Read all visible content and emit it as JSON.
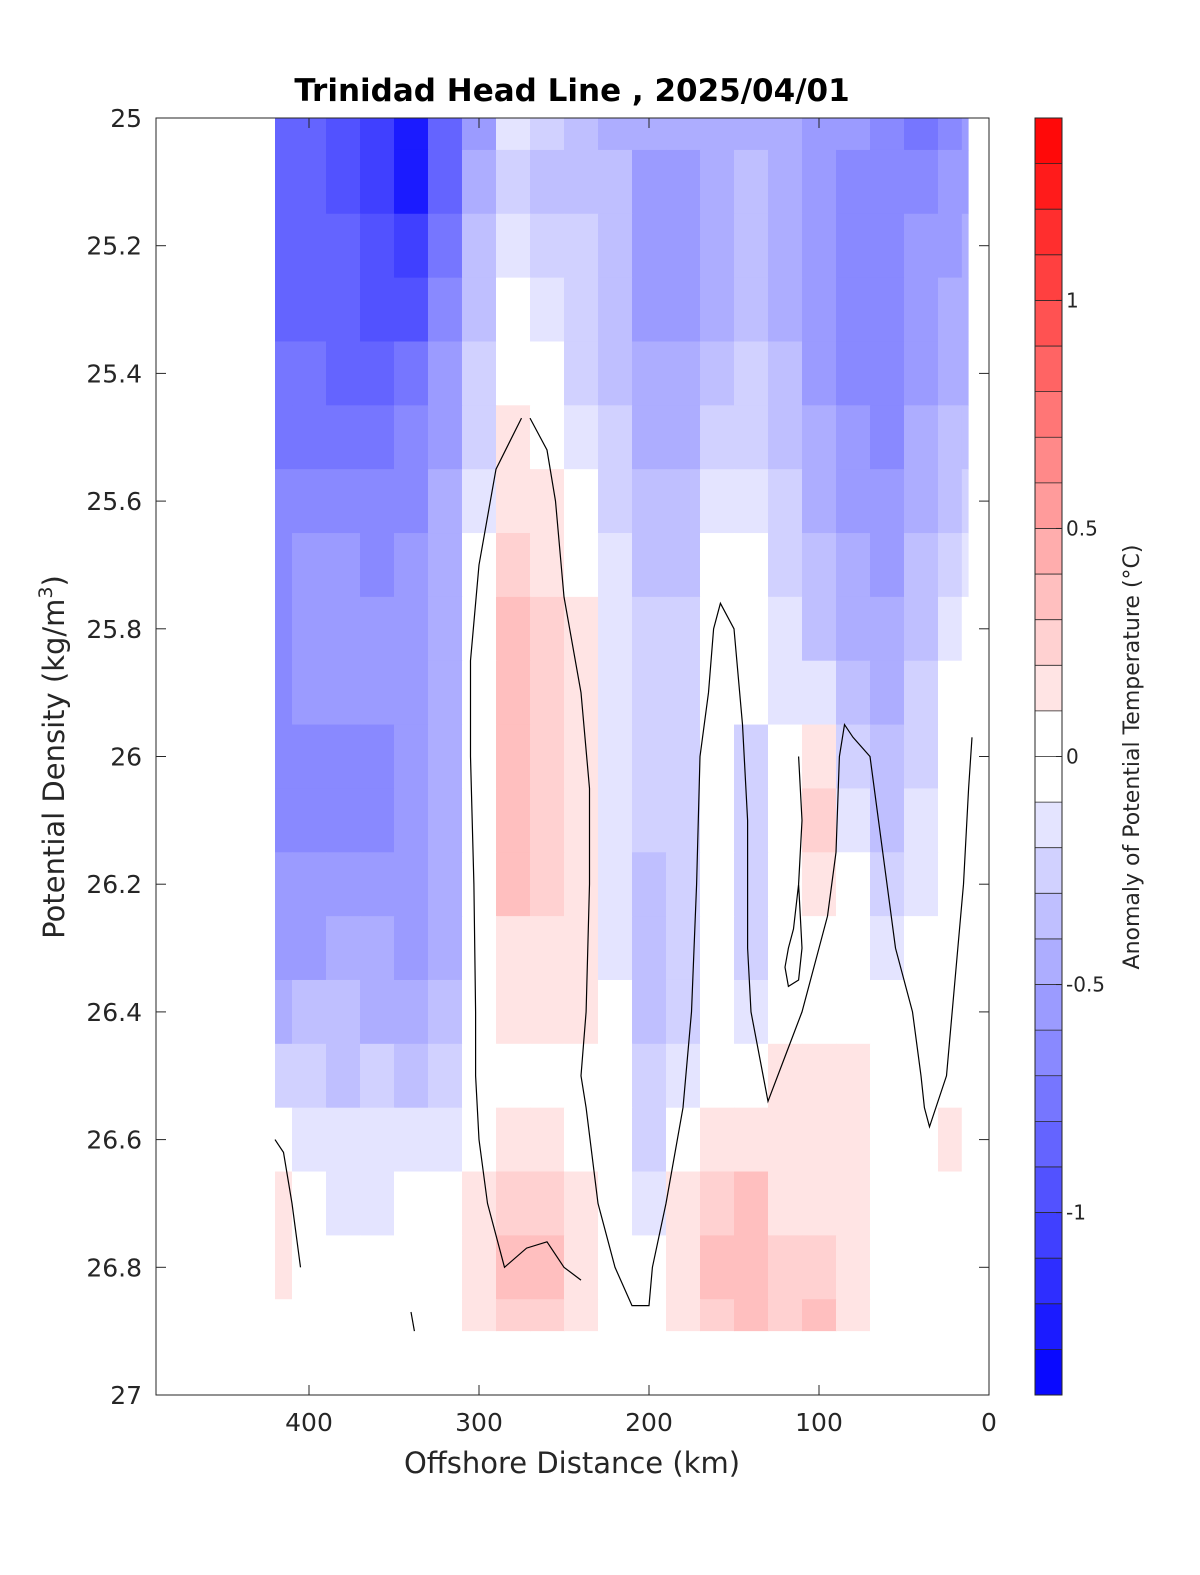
{
  "chart_data": {
    "type": "heatmap",
    "title": "Trinidad Head Line , 2025/04/01",
    "xlabel": "Offshore Distance (km)",
    "ylabel_main": "Potential Density (kg/m",
    "ylabel_sup": "3",
    "ylabel_end": ")",
    "colorbar_label": "Anomaly of Potential Temperature (°C)",
    "x_reversed": true,
    "xlim": [
      0,
      490
    ],
    "ylim": [
      25,
      27
    ],
    "y_reversed": true,
    "xticks": [
      {
        "value": 400,
        "label": "400"
      },
      {
        "value": 300,
        "label": "300"
      },
      {
        "value": 200,
        "label": "200"
      },
      {
        "value": 100,
        "label": "100"
      },
      {
        "value": 0,
        "label": "0"
      }
    ],
    "yticks": [
      {
        "value": 25,
        "label": "25"
      },
      {
        "value": 25.2,
        "label": "25.2"
      },
      {
        "value": 25.4,
        "label": "25.4"
      },
      {
        "value": 25.6,
        "label": "25.6"
      },
      {
        "value": 25.8,
        "label": "25.8"
      },
      {
        "value": 26,
        "label": "26"
      },
      {
        "value": 26.2,
        "label": "26.2"
      },
      {
        "value": 26.4,
        "label": "26.4"
      },
      {
        "value": 26.6,
        "label": "26.6"
      },
      {
        "value": 26.8,
        "label": "26.8"
      },
      {
        "value": 27,
        "label": "27"
      }
    ],
    "colorbar": {
      "min": -1.4,
      "max": 1.4,
      "step": 0.1,
      "min_color": "#0000ff",
      "max_color": "#ff0000",
      "mid_color": "#ffffff",
      "ticks": [
        {
          "value": 1,
          "label": "1"
        },
        {
          "value": 0.5,
          "label": "0.5"
        },
        {
          "value": 0,
          "label": "0"
        },
        {
          "value": -0.5,
          "label": "-0.5"
        },
        {
          "value": -1,
          "label": "-1"
        }
      ]
    },
    "data_extent": {
      "x_min": 12,
      "x_max": 420,
      "y_min": 25,
      "y_max": 26.9
    },
    "x": [
      420,
      400,
      380,
      360,
      340,
      320,
      300,
      280,
      260,
      240,
      220,
      200,
      180,
      160,
      140,
      120,
      100,
      80,
      60,
      40,
      20,
      12
    ],
    "y": [
      25.0,
      25.1,
      25.2,
      25.3,
      25.4,
      25.5,
      25.6,
      25.7,
      25.8,
      25.9,
      26.0,
      26.1,
      26.2,
      26.3,
      26.4,
      26.5,
      26.6,
      26.7,
      26.8,
      26.9
    ],
    "z": [
      [
        -0.8,
        -0.85,
        -0.95,
        -1.05,
        -1.25,
        -0.85,
        -0.55,
        -0.1,
        -0.25,
        -0.35,
        -0.4,
        -0.45,
        -0.45,
        -0.4,
        -0.4,
        -0.45,
        -0.5,
        -0.55,
        -0.6,
        -0.7,
        -0.6,
        -0.55
      ],
      [
        -0.8,
        -0.85,
        -0.95,
        -1.05,
        -1.2,
        -0.85,
        -0.45,
        -0.2,
        -0.3,
        -0.35,
        -0.35,
        -0.5,
        -0.5,
        -0.4,
        -0.35,
        -0.45,
        -0.55,
        -0.6,
        -0.6,
        -0.65,
        -0.55,
        -0.5
      ],
      [
        -0.8,
        -0.8,
        -0.85,
        -0.95,
        -1.05,
        -0.75,
        -0.35,
        -0.15,
        -0.25,
        -0.25,
        -0.3,
        -0.5,
        -0.5,
        -0.4,
        -0.35,
        -0.4,
        -0.55,
        -0.6,
        -0.6,
        -0.55,
        -0.5,
        -0.45
      ],
      [
        -0.8,
        -0.8,
        -0.85,
        -0.9,
        -0.9,
        -0.65,
        -0.3,
        -0.05,
        -0.15,
        -0.25,
        -0.3,
        -0.5,
        -0.5,
        -0.4,
        -0.3,
        -0.4,
        -0.55,
        -0.6,
        -0.6,
        -0.5,
        -0.45,
        -0.4
      ],
      [
        -0.75,
        -0.75,
        -0.8,
        -0.8,
        -0.75,
        -0.55,
        -0.25,
        0.05,
        -0.05,
        -0.2,
        -0.3,
        -0.45,
        -0.45,
        -0.35,
        -0.25,
        -0.35,
        -0.5,
        -0.6,
        -0.6,
        -0.5,
        -0.4,
        -0.4
      ],
      [
        -0.7,
        -0.7,
        -0.75,
        -0.75,
        -0.65,
        -0.5,
        -0.2,
        0.1,
        0.05,
        -0.1,
        -0.25,
        -0.4,
        -0.4,
        -0.2,
        -0.2,
        -0.3,
        -0.45,
        -0.55,
        -0.6,
        -0.45,
        -0.35,
        -0.35
      ],
      [
        -0.65,
        -0.6,
        -0.6,
        -0.65,
        -0.6,
        -0.45,
        -0.1,
        0.2,
        0.15,
        0.0,
        -0.2,
        -0.35,
        -0.35,
        -0.1,
        -0.15,
        -0.25,
        -0.4,
        -0.5,
        -0.55,
        -0.4,
        -0.3,
        -0.25
      ],
      [
        -0.6,
        -0.55,
        -0.55,
        -0.6,
        -0.55,
        -0.4,
        -0.05,
        0.25,
        0.2,
        0.05,
        -0.15,
        -0.3,
        -0.3,
        0.0,
        -0.05,
        -0.2,
        -0.35,
        -0.45,
        -0.5,
        -0.35,
        -0.2,
        -0.15
      ],
      [
        -0.6,
        -0.55,
        -0.5,
        -0.55,
        -0.55,
        -0.4,
        -0.05,
        0.3,
        0.25,
        0.1,
        -0.1,
        -0.25,
        -0.25,
        0.05,
        0.05,
        -0.15,
        -0.3,
        -0.4,
        -0.45,
        -0.3,
        -0.1,
        -0.05
      ],
      [
        -0.6,
        -0.55,
        -0.5,
        -0.55,
        -0.55,
        -0.4,
        -0.05,
        0.3,
        0.25,
        0.1,
        -0.1,
        -0.25,
        -0.25,
        0.05,
        0.05,
        -0.1,
        -0.15,
        -0.35,
        -0.4,
        -0.25,
        -0.05,
        -0.05
      ],
      [
        -0.6,
        -0.6,
        -0.6,
        -0.6,
        -0.55,
        -0.4,
        -0.05,
        0.3,
        0.25,
        0.1,
        -0.1,
        -0.25,
        -0.2,
        0.05,
        -0.2,
        0.05,
        0.1,
        -0.25,
        -0.35,
        -0.2,
        0.0,
        -0.05
      ],
      [
        -0.6,
        -0.6,
        -0.6,
        -0.6,
        -0.55,
        -0.4,
        -0.05,
        0.3,
        0.25,
        0.1,
        -0.1,
        -0.25,
        -0.2,
        0.05,
        -0.25,
        0.05,
        0.25,
        -0.15,
        -0.3,
        -0.15,
        0.0,
        0.0
      ],
      [
        -0.55,
        -0.55,
        -0.55,
        -0.55,
        -0.55,
        -0.4,
        -0.05,
        0.3,
        0.25,
        0.1,
        -0.1,
        -0.3,
        -0.2,
        0.0,
        -0.25,
        0.05,
        0.15,
        -0.05,
        -0.2,
        -0.1,
        0.0,
        0.0
      ],
      [
        -0.5,
        -0.5,
        -0.45,
        -0.45,
        -0.5,
        -0.4,
        -0.05,
        0.15,
        0.1,
        0.1,
        -0.1,
        -0.3,
        -0.2,
        0.05,
        -0.2,
        0.05,
        0.05,
        0.0,
        -0.1,
        -0.05,
        0.0,
        0.0
      ],
      [
        -0.4,
        -0.35,
        -0.35,
        -0.45,
        -0.4,
        -0.3,
        -0.05,
        0.15,
        0.1,
        0.1,
        -0.05,
        -0.3,
        -0.2,
        0.05,
        -0.1,
        0.0,
        0.05,
        0.05,
        0.0,
        0.0,
        0.0,
        0.0
      ],
      [
        -0.25,
        -0.25,
        -0.3,
        -0.2,
        -0.3,
        -0.2,
        -0.05,
        0.05,
        0.05,
        0.0,
        -0.05,
        -0.25,
        -0.15,
        0.05,
        0.05,
        0.1,
        0.1,
        0.1,
        0.0,
        0.0,
        0.0,
        0.05
      ],
      [
        -0.05,
        -0.1,
        -0.15,
        -0.15,
        -0.15,
        -0.1,
        0.0,
        0.15,
        0.1,
        0.05,
        0.0,
        -0.2,
        0.0,
        0.15,
        0.15,
        0.15,
        0.1,
        0.1,
        0.0,
        0.0,
        0.1,
        0.05
      ],
      [
        0.1,
        -0.05,
        -0.1,
        -0.1,
        -0.05,
        0.0,
        0.1,
        0.25,
        0.25,
        0.15,
        0.05,
        -0.1,
        0.1,
        0.25,
        0.3,
        0.2,
        0.2,
        0.15,
        0.05,
        0.0,
        0.05,
        0.0
      ],
      [
        0.1,
        0.0,
        -0.05,
        0.0,
        0.0,
        0.05,
        0.15,
        0.3,
        0.3,
        0.15,
        0.05,
        0.0,
        0.15,
        0.3,
        0.35,
        0.25,
        0.25,
        0.15,
        0.05,
        0.0,
        0.0,
        0.0
      ],
      [
        0.05,
        0.0,
        0.0,
        0.0,
        0.0,
        0.05,
        0.15,
        0.25,
        0.25,
        0.15,
        0.05,
        0.05,
        0.15,
        0.25,
        0.3,
        0.25,
        0.3,
        0.15,
        0.05,
        0.0,
        0.0,
        0.0
      ]
    ],
    "contour_lines": [
      {
        "name": "zero-contour-central",
        "points": [
          [
            270,
            25.47
          ],
          [
            260,
            25.52
          ],
          [
            255,
            25.6
          ],
          [
            250,
            25.75
          ],
          [
            240,
            25.9
          ],
          [
            235,
            26.05
          ],
          [
            235,
            26.2
          ],
          [
            237,
            26.4
          ],
          [
            240,
            26.5
          ],
          [
            237,
            26.55
          ],
          [
            230,
            26.7
          ],
          [
            220,
            26.8
          ],
          [
            210,
            26.86
          ],
          [
            200,
            26.86
          ],
          [
            198,
            26.8
          ],
          [
            190,
            26.7
          ],
          [
            180,
            26.55
          ],
          [
            175,
            26.4
          ],
          [
            172,
            26.2
          ],
          [
            170,
            26.0
          ],
          [
            165,
            25.9
          ],
          [
            162,
            25.8
          ],
          [
            158,
            25.76
          ],
          [
            150,
            25.8
          ],
          [
            145,
            25.95
          ],
          [
            142,
            26.1
          ],
          [
            142,
            26.3
          ],
          [
            140,
            26.4
          ],
          [
            135,
            26.47
          ],
          [
            130,
            26.54
          ],
          [
            120,
            26.47
          ],
          [
            110,
            26.4
          ],
          [
            100,
            26.3
          ],
          [
            95,
            26.25
          ],
          [
            90,
            26.15
          ],
          [
            88,
            26.0
          ],
          [
            85,
            25.95
          ],
          [
            80,
            25.97
          ],
          [
            70,
            26.0
          ],
          [
            65,
            26.1
          ],
          [
            60,
            26.2
          ],
          [
            55,
            26.3
          ],
          [
            45,
            26.4
          ],
          [
            40,
            26.5
          ],
          [
            38,
            26.55
          ],
          [
            35,
            26.58
          ],
          [
            25,
            26.5
          ],
          [
            20,
            26.35
          ],
          [
            15,
            26.2
          ],
          [
            12,
            26.05
          ],
          [
            10,
            25.97
          ]
        ]
      },
      {
        "name": "zero-contour-west",
        "points": [
          [
            275,
            25.47
          ],
          [
            290,
            25.55
          ],
          [
            300,
            25.7
          ],
          [
            305,
            25.85
          ],
          [
            305,
            26.0
          ],
          [
            303,
            26.2
          ],
          [
            302,
            26.4
          ],
          [
            302,
            26.5
          ],
          [
            300,
            26.6
          ],
          [
            295,
            26.7
          ],
          [
            285,
            26.8
          ],
          [
            272,
            26.77
          ],
          [
            260,
            26.76
          ],
          [
            250,
            26.8
          ],
          [
            240,
            26.82
          ]
        ]
      },
      {
        "name": "zero-contour-loop",
        "points": [
          [
            112,
            26.0
          ],
          [
            110,
            26.1
          ],
          [
            112,
            26.2
          ],
          [
            115,
            26.27
          ],
          [
            118,
            26.3
          ],
          [
            120,
            26.33
          ],
          [
            118,
            26.36
          ],
          [
            112,
            26.35
          ],
          [
            110,
            26.3
          ],
          [
            112,
            26.2
          ]
        ]
      },
      {
        "name": "zero-contour-edge",
        "points": [
          [
            420,
            26.6
          ],
          [
            415,
            26.62
          ],
          [
            410,
            26.7
          ],
          [
            405,
            26.8
          ]
        ]
      },
      {
        "name": "zero-contour-bottom",
        "points": [
          [
            340,
            26.87
          ],
          [
            338,
            26.9
          ]
        ]
      }
    ]
  }
}
